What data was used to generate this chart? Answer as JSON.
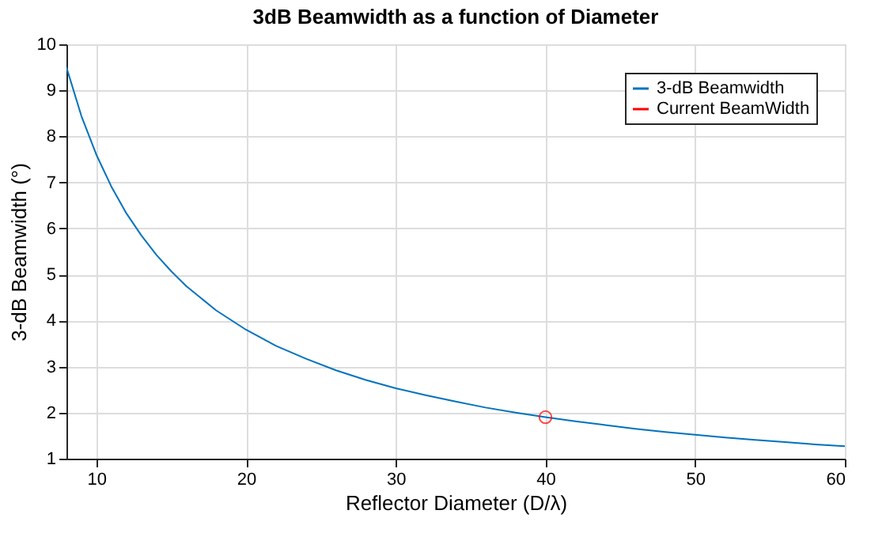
{
  "chart_data": {
    "type": "line",
    "title": "3dB Beamwidth as a function of Diameter",
    "xlabel": "Reflector Diameter (D/λ)",
    "ylabel": "3-dB Beamwidth (°)",
    "series": [
      {
        "name": "3-dB Beamwidth",
        "color": "#0072bd",
        "marker": "none",
        "x": [
          8,
          9,
          10,
          11,
          12,
          13,
          14,
          15,
          16,
          18,
          20,
          22,
          24,
          26,
          28,
          30,
          32,
          34,
          36,
          38,
          40,
          42,
          44,
          46,
          48,
          50,
          52,
          54,
          56,
          58,
          60
        ],
        "values": [
          9.5,
          8.44,
          7.6,
          6.91,
          6.33,
          5.85,
          5.43,
          5.07,
          4.75,
          4.22,
          3.8,
          3.45,
          3.17,
          2.92,
          2.71,
          2.53,
          2.38,
          2.24,
          2.11,
          2.0,
          1.9,
          1.81,
          1.73,
          1.65,
          1.58,
          1.52,
          1.46,
          1.41,
          1.36,
          1.31,
          1.27
        ]
      },
      {
        "name": "Current BeamWidth",
        "color": "#ff0000",
        "type": "scatter",
        "marker": "circle",
        "x": [
          40
        ],
        "values": [
          1.9
        ]
      }
    ],
    "xlim": [
      8,
      60
    ],
    "xticks": [
      10,
      20,
      30,
      40,
      50,
      60
    ],
    "ylim": [
      1,
      10
    ],
    "yticks": [
      1,
      2,
      3,
      4,
      5,
      6,
      7,
      8,
      9,
      10
    ],
    "grid": true,
    "legend": "top right"
  }
}
